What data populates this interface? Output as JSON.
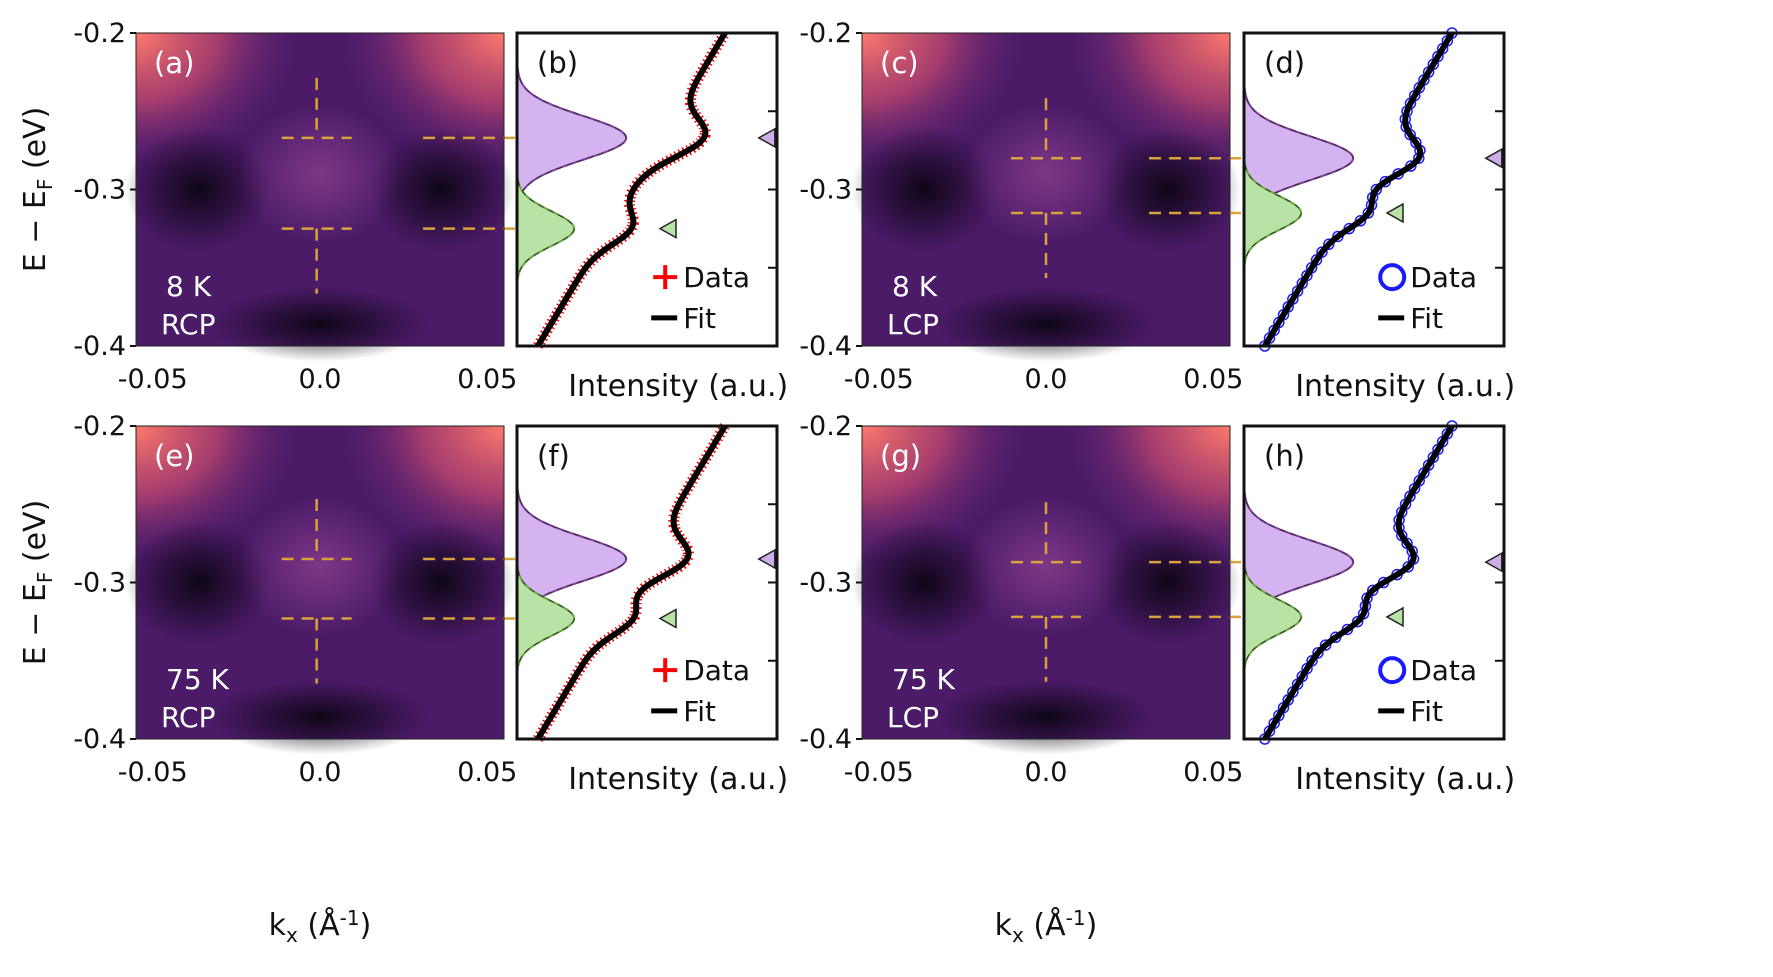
{
  "figure": {
    "y_axis_title": "E − E",
    "y_axis_title_sub": "F",
    "y_axis_title_unit": " (eV)",
    "x_axis_title": "k",
    "x_axis_title_sub": "x",
    "x_axis_title_unit": " (Å",
    "x_axis_title_sup": "-1",
    "x_axis_title_close": ")",
    "intensity_label": "Intensity (a.u.)",
    "legend_data": "Data",
    "legend_fit": "Fit"
  },
  "chart_data": [
    {
      "panel": "(a)",
      "type": "heatmap",
      "temperature": "8 K",
      "polarization": "RCP",
      "xlim": [
        -0.055,
        0.055
      ],
      "ylim": [
        -0.4,
        -0.2
      ],
      "xticks": [
        "-0.05",
        "0.0",
        "0.05"
      ],
      "yticks": [
        "-0.2",
        "-0.3",
        "-0.4"
      ],
      "cut_energies_eV": [
        -0.267,
        -0.325
      ],
      "cut_k": -0.001
    },
    {
      "panel": "(b)",
      "type": "line",
      "series": [
        {
          "name": "Data",
          "marker": "+",
          "color": "#ff0000"
        },
        {
          "name": "Fit",
          "color": "#000000"
        }
      ],
      "ylim": [
        -0.4,
        -0.2
      ],
      "peaks_eV": [
        -0.267,
        -0.325
      ],
      "peak_fill_colors": [
        "#d5b3f0",
        "#b9e2a6"
      ]
    },
    {
      "panel": "(c)",
      "type": "heatmap",
      "temperature": "8 K",
      "polarization": "LCP",
      "xlim": [
        -0.055,
        0.055
      ],
      "ylim": [
        -0.4,
        -0.2
      ],
      "xticks": [
        "-0.05",
        "0.0",
        "0.05"
      ],
      "yticks": [
        "-0.2",
        "-0.3",
        "-0.4"
      ],
      "cut_energies_eV": [
        -0.28,
        -0.315
      ],
      "cut_k": 0.0
    },
    {
      "panel": "(d)",
      "type": "line",
      "series": [
        {
          "name": "Data",
          "marker": "o",
          "color": "#1a1aff"
        },
        {
          "name": "Fit",
          "color": "#000000"
        }
      ],
      "ylim": [
        -0.4,
        -0.2
      ],
      "peaks_eV": [
        -0.28,
        -0.315
      ],
      "peak_fill_colors": [
        "#d5b3f0",
        "#b9e2a6"
      ]
    },
    {
      "panel": "(e)",
      "type": "heatmap",
      "temperature": "75 K",
      "polarization": "RCP",
      "xlim": [
        -0.055,
        0.055
      ],
      "ylim": [
        -0.4,
        -0.2
      ],
      "xticks": [
        "-0.05",
        "0.0",
        "0.05"
      ],
      "yticks": [
        "-0.2",
        "-0.3",
        "-0.4"
      ],
      "cut_energies_eV": [
        -0.285,
        -0.323
      ],
      "cut_k": -0.001
    },
    {
      "panel": "(f)",
      "type": "line",
      "series": [
        {
          "name": "Data",
          "marker": "+",
          "color": "#ff0000"
        },
        {
          "name": "Fit",
          "color": "#000000"
        }
      ],
      "ylim": [
        -0.4,
        -0.2
      ],
      "peaks_eV": [
        -0.285,
        -0.323
      ],
      "peak_fill_colors": [
        "#d5b3f0",
        "#b9e2a6"
      ]
    },
    {
      "panel": "(g)",
      "type": "heatmap",
      "temperature": "75 K",
      "polarization": "LCP",
      "xlim": [
        -0.055,
        0.055
      ],
      "ylim": [
        -0.4,
        -0.2
      ],
      "xticks": [
        "-0.05",
        "0.0",
        "0.05"
      ],
      "yticks": [
        "-0.2",
        "-0.3",
        "-0.4"
      ],
      "cut_energies_eV": [
        -0.287,
        -0.322
      ],
      "cut_k": 0.0
    },
    {
      "panel": "(h)",
      "type": "line",
      "series": [
        {
          "name": "Data",
          "marker": "o",
          "color": "#1a1aff"
        },
        {
          "name": "Fit",
          "color": "#000000"
        }
      ],
      "ylim": [
        -0.4,
        -0.2
      ],
      "peaks_eV": [
        -0.287,
        -0.322
      ],
      "peak_fill_colors": [
        "#d5b3f0",
        "#b9e2a6"
      ]
    }
  ]
}
